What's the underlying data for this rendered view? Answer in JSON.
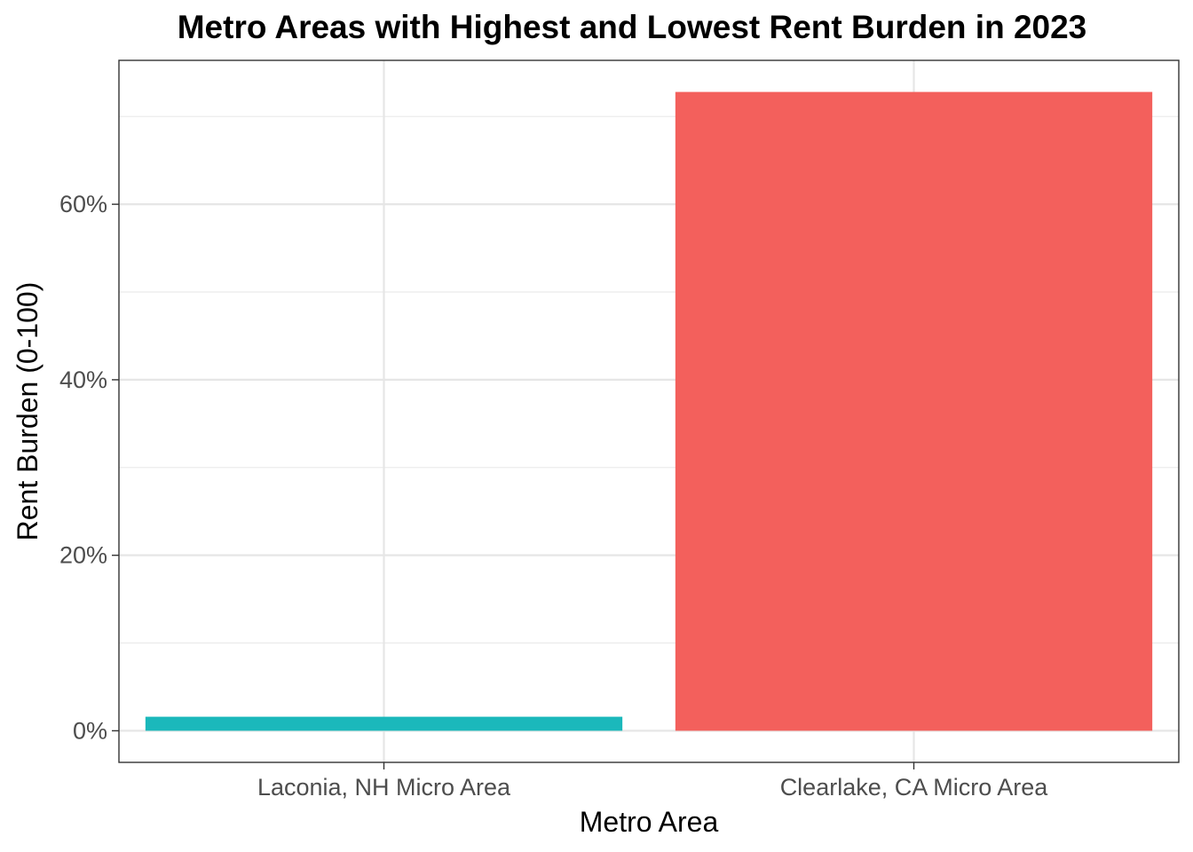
{
  "chart_data": {
    "type": "bar",
    "title": "Metro Areas with Highest and Lowest Rent Burden in 2023",
    "xlabel": "Metro Area",
    "ylabel": "Rent Burden (0-100)",
    "categories": [
      "Laconia, NH Micro Area",
      "Clearlake, CA Micro Area"
    ],
    "values": [
      1.6,
      72.8
    ],
    "bar_colors": [
      "#1bb8bb",
      "#f3605c"
    ],
    "ylim": [
      -3.6,
      76.4
    ],
    "y_ticks": [
      0,
      20,
      40,
      60
    ],
    "y_tick_labels": [
      "0%",
      "20%",
      "40%",
      "60%"
    ],
    "grid": true,
    "legend": "none"
  }
}
